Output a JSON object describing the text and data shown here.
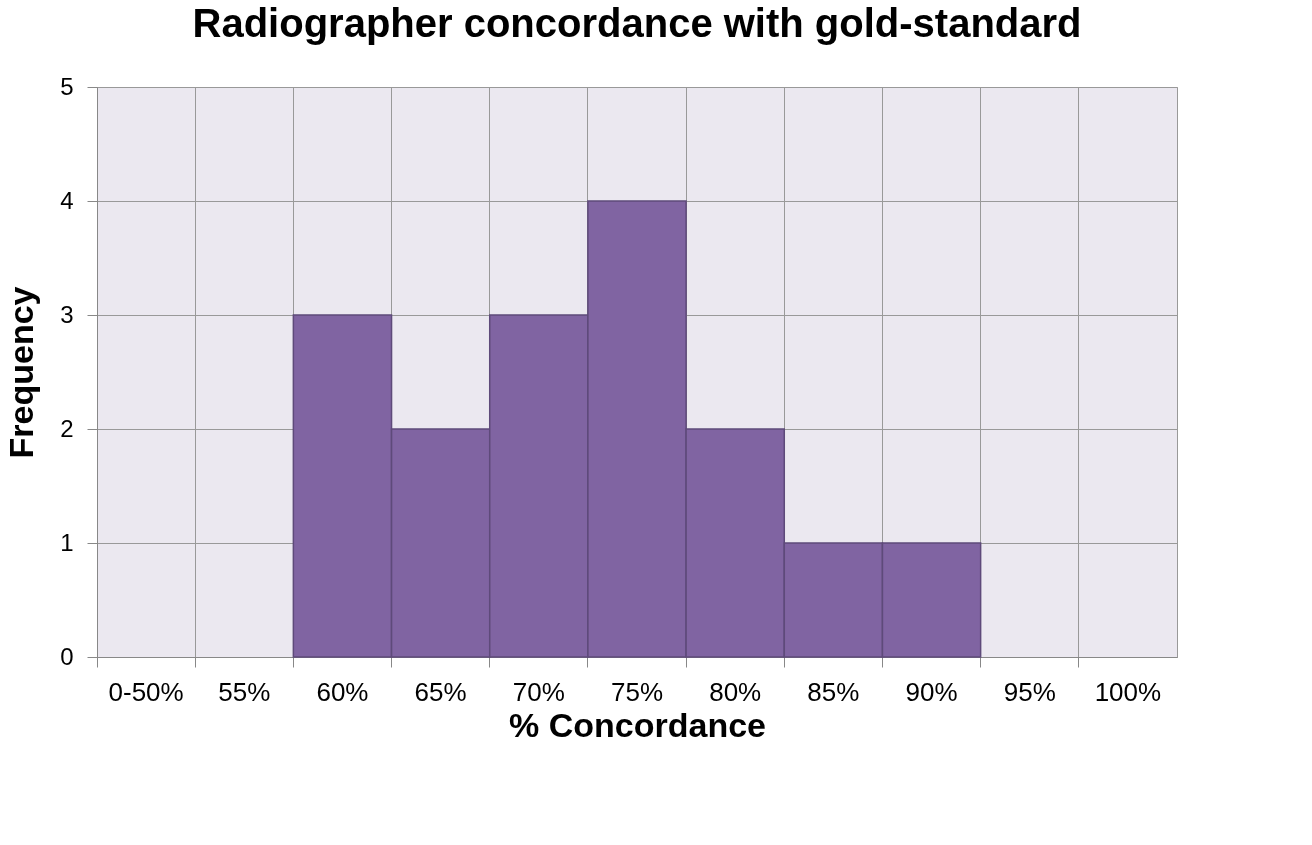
{
  "chart_data": {
    "type": "bar",
    "title": "Radiographer concordance with gold-standard",
    "xlabel": "% Concordance",
    "ylabel": "Frequency",
    "categories": [
      "0-50%",
      "55%",
      "60%",
      "65%",
      "70%",
      "75%",
      "80%",
      "85%",
      "90%",
      "95%",
      "100%"
    ],
    "values": [
      0,
      0,
      3,
      2,
      3,
      4,
      2,
      1,
      1,
      0,
      0
    ],
    "color": "#8064a2",
    "ylim": [
      0,
      5
    ],
    "yticks": [
      0,
      1,
      2,
      3,
      4,
      5
    ],
    "grid": true
  }
}
